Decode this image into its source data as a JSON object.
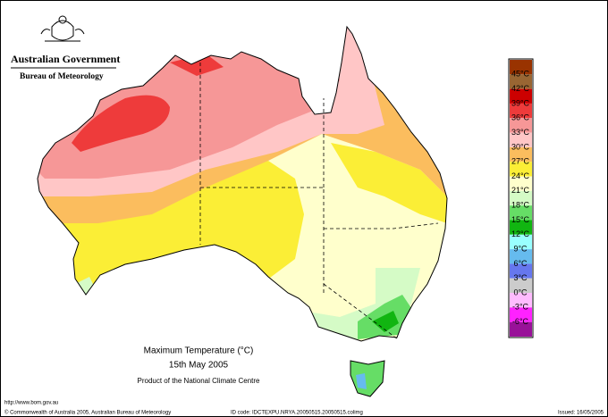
{
  "header": {
    "government": "Australian Government",
    "agency": "Bureau of Meteorology"
  },
  "map": {
    "title": "Maximum Temperature (°C)",
    "date": "15th May 2005",
    "credit": "Product of the National Climate Centre"
  },
  "legend": {
    "labels": [
      "45°C",
      "42°C",
      "39°C",
      "36°C",
      "33°C",
      "30°C",
      "27°C",
      "24°C",
      "21°C",
      "18°C",
      "15°C",
      "12°C",
      "9°C",
      "6°C",
      "3°C",
      "0°C",
      "-3°C",
      "-6°C"
    ],
    "colors": [
      "#993300",
      "#996633",
      "#cc0000",
      "#ee3b3b",
      "#f69797",
      "#ffc6c6",
      "#fbbd5e",
      "#fbee36",
      "#ffffcc",
      "#d5fbc6",
      "#66dd66",
      "#11b511",
      "#99ffff",
      "#66bbee",
      "#6677ee",
      "#cccccc",
      "#ffbbff",
      "#ff22ff",
      "#991199"
    ]
  },
  "footer": {
    "url": "http://www.bom.gov.au",
    "copyright": "© Commonwealth of Australia 2005, Australian Bureau of Meteorology",
    "id_code": "ID code: IDCTEXPU.NRYA.20050515.20050515.colimg",
    "issued": "Issued: 16/05/2005"
  }
}
